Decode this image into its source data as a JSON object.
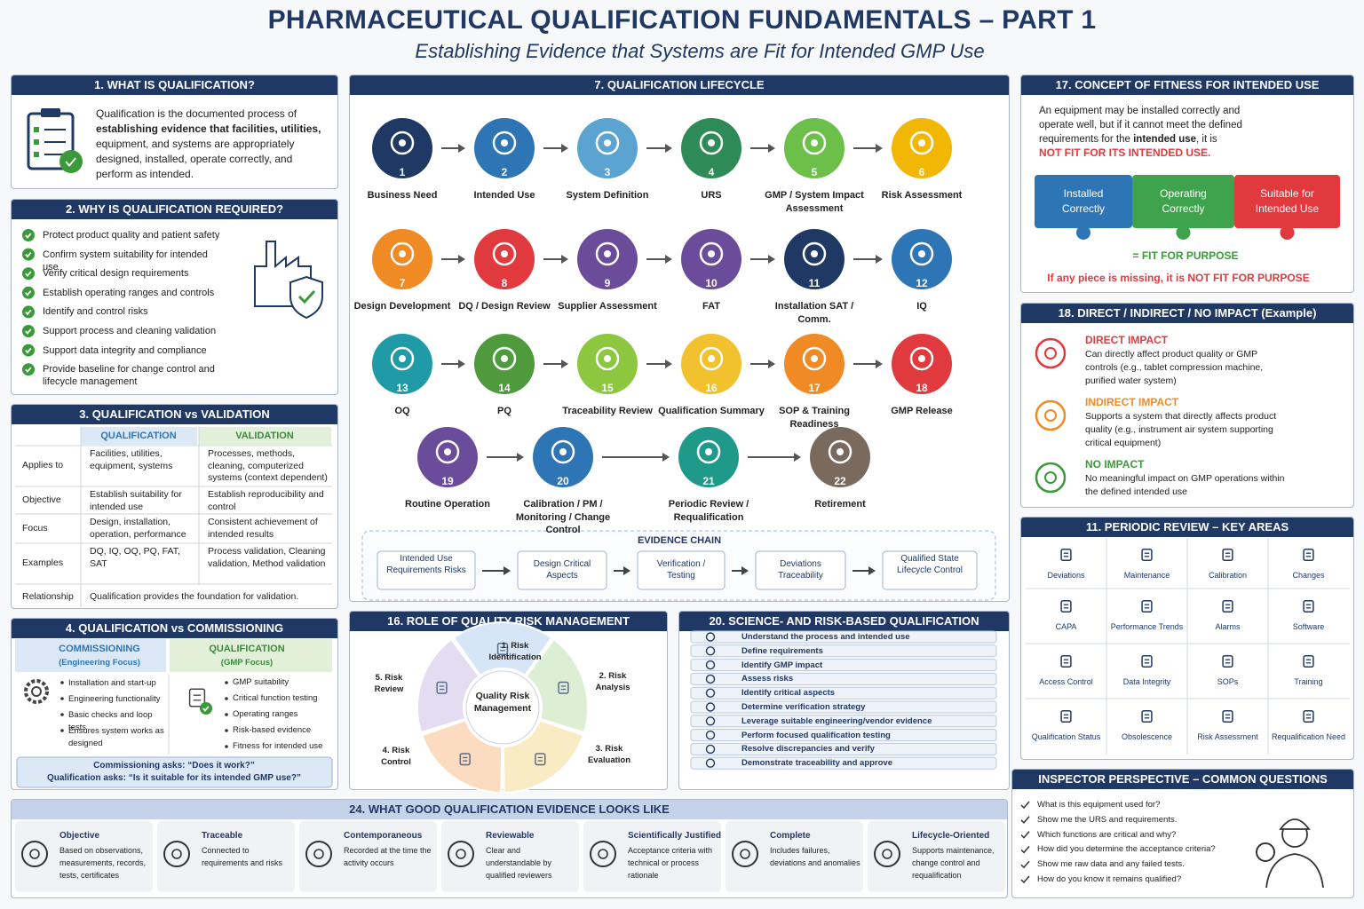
{
  "header": {
    "title": "PHARMACEUTICAL QUALIFICATION FUNDAMENTALS –  PART 1",
    "subtitle": "Establishing Evidence that Systems are Fit for Intended GMP Use"
  },
  "what_is": {
    "title": "1. WHAT IS QUALIFICATION?",
    "text": [
      "Qualification is the documented process of ",
      "establishing evidence that facilities, utilities,",
      " equipment, and systems are appropriately designed, installed, operate correctly, and perform as intended."
    ]
  },
  "why": {
    "title": "2. WHY IS QUALIFICATION REQUIRED?",
    "items": [
      "Protect product quality and patient safety",
      "Confirm system suitability for intended use",
      "Verify critical design requirements",
      "Establish operating ranges and controls",
      "Identify and control risks",
      "Support process and cleaning validation",
      "Support data integrity and compliance",
      "Provide baseline for change control and lifecycle management"
    ]
  },
  "vs_validation": {
    "title": "3. QUALIFICATION vs VALIDATION",
    "columns": [
      "QUALIFICATION",
      "VALIDATION"
    ],
    "rows": [
      {
        "label": "Applies to",
        "qualification": "Facilities, utilities, equipment, systems",
        "validation": "Processes, methods, cleaning, computerized systems (context dependent)"
      },
      {
        "label": "Objective",
        "qualification": "Establish suitability for intended use",
        "validation": "Establish reproducibility and control"
      },
      {
        "label": "Focus",
        "qualification": "Design, installation, operation, performance",
        "validation": "Consistent achievement of intended results"
      },
      {
        "label": "Examples",
        "qualification": "DQ, IQ, OQ, PQ, FAT, SAT",
        "validation": "Process validation, Cleaning validation, Method validation"
      }
    ],
    "relationship": {
      "label": "Relationship",
      "text": "Qualification provides the foundation for validation."
    }
  },
  "vs_commissioning": {
    "title": "4. QUALIFICATION vs COMMISSIONING",
    "commissioning": {
      "heading": "COMMISSIONING",
      "subheading": "(Engineering Focus)",
      "items": [
        "Installation and start-up",
        "Engineering functionality",
        "Basic checks and loop tests",
        "Ensures system works as designed"
      ]
    },
    "qualification": {
      "heading": "QUALIFICATION",
      "subheading": "(GMP Focus)",
      "items": [
        "GMP suitability",
        "Critical function testing",
        "Operating ranges",
        "Risk-based evidence",
        "Fitness for intended use"
      ]
    },
    "footer": [
      "Commissioning asks: “Does it work?”",
      "Qualification asks: “Is it suitable for its intended GMP use?”"
    ]
  },
  "lifecycle": {
    "title": "7. QUALIFICATION LIFECYCLE",
    "steps": [
      {
        "number": 1,
        "label": "Business Need",
        "color": "#1f3864"
      },
      {
        "number": 2,
        "label": "Intended Use",
        "color": "#2e75b6"
      },
      {
        "number": 3,
        "label": "System Definition",
        "color": "#5ba3d0"
      },
      {
        "number": 4,
        "label": "URS",
        "color": "#2e8b57"
      },
      {
        "number": 5,
        "label": "GMP / System Impact Assessment",
        "color": "#6cc04a"
      },
      {
        "number": 6,
        "label": "Risk Assessment",
        "color": "#f2b705"
      },
      {
        "number": 7,
        "label": "Design Development",
        "color": "#f08a24"
      },
      {
        "number": 8,
        "label": "DQ / Design Review",
        "color": "#e03a3e"
      },
      {
        "number": 9,
        "label": "Supplier Assessment",
        "color": "#6b4c9a"
      },
      {
        "number": 10,
        "label": "FAT",
        "color": "#6b4c9a"
      },
      {
        "number": 11,
        "label": "Installation SAT / Comm.",
        "color": "#1f3864"
      },
      {
        "number": 12,
        "label": "IQ",
        "color": "#2e75b6"
      },
      {
        "number": 13,
        "label": "OQ",
        "color": "#1f9aa6"
      },
      {
        "number": 14,
        "label": "PQ",
        "color": "#4e9a3c"
      },
      {
        "number": 15,
        "label": "Traceability Review",
        "color": "#8dc63f"
      },
      {
        "number": 16,
        "label": "Qualification Summary",
        "color": "#f2c12e"
      },
      {
        "number": 17,
        "label": "SOP & Training Readiness",
        "color": "#f08a24"
      },
      {
        "number": 18,
        "label": "GMP Release",
        "color": "#e03a3e"
      },
      {
        "number": 19,
        "label": "Routine Operation",
        "color": "#6b4c9a"
      },
      {
        "number": 20,
        "label": "Calibration / PM / Monitoring / Change Control",
        "color": "#2e75b6"
      },
      {
        "number": 21,
        "label": "Periodic Review / Requalification",
        "color": "#1f9a8a"
      },
      {
        "number": 22,
        "label": "Retirement",
        "color": "#7a6a5e"
      }
    ],
    "evidence_chain": {
      "title": "EVIDENCE CHAIN",
      "items": [
        "Intended Use Requirements Risks",
        "Design Critical Aspects",
        "Verification / Testing",
        "Deviations Traceability",
        "Qualified State Lifecycle Control"
      ]
    }
  },
  "risk_management": {
    "title": "16. ROLE OF QUALITY RISK MANAGEMENT",
    "center": "Quality Risk Management",
    "segments": [
      {
        "label": "1. Risk Identification",
        "color": "#d6e6f7"
      },
      {
        "label": "2. Risk Analysis",
        "color": "#dcefd5"
      },
      {
        "label": "3. Risk Evaluation",
        "color": "#f9ebc4"
      },
      {
        "label": "4. Risk Control",
        "color": "#fbdcc0"
      },
      {
        "label": "5. Risk Review",
        "color": "#e4dcf1"
      }
    ]
  },
  "science_based": {
    "title": "20. SCIENCE- AND RISK-BASED QUALIFICATION",
    "items": [
      "Understand the process and intended use",
      "Define requirements",
      "Identify GMP impact",
      "Assess risks",
      "Identify critical aspects",
      "Determine verification strategy",
      "Leverage suitable engineering/vendor evidence",
      "Perform focused qualification testing",
      "Resolve discrepancies and verify",
      "Demonstrate traceability and approve"
    ]
  },
  "fitness": {
    "title": "17. CONCEPT OF FITNESS FOR INTENDED USE",
    "text": [
      "An equipment may be installed correctly and operate well, but if it cannot meet the defined requirements for the ",
      "intended use",
      ", it is"
    ],
    "conclusion": "NOT FIT FOR ITS INTENDED USE.",
    "pieces": [
      {
        "label": "Installed Correctly",
        "color": "#2e75b6"
      },
      {
        "label": "Operating Correctly",
        "color": "#3fa34d"
      },
      {
        "label": "Suitable for Intended Use",
        "color": "#e0393e"
      }
    ],
    "result": "=  FIT FOR PURPOSE",
    "warning": "If any piece is missing, it is NOT FIT FOR PURPOSE"
  },
  "impact": {
    "title": "18. DIRECT / INDIRECT / NO IMPACT (Example)",
    "items": [
      {
        "heading": "DIRECT IMPACT",
        "text": "Can directly affect product quality or GMP controls (e.g., tablet compression machine, purified water system)",
        "color": "#e03a3e"
      },
      {
        "heading": "INDIRECT IMPACT",
        "text": "Supports a system that directly affects product quality (e.g., instrument air system supporting critical equipment)",
        "color": "#f08a24"
      },
      {
        "heading": "NO IMPACT",
        "text": "No meaningful impact on GMP operations within the defined intended use",
        "color": "#3a9a3a"
      }
    ]
  },
  "periodic_review": {
    "title": "11. PERIODIC REVIEW – KEY AREAS",
    "items": [
      "Deviations",
      "Maintenance",
      "Calibration",
      "Changes",
      "CAPA",
      "Performance Trends",
      "Alarms",
      "Software",
      "Access Control",
      "Data Integrity",
      "SOPs",
      "Training",
      "Qualification Status",
      "Obsolescence",
      "Risk Assessment",
      "Requalification Need"
    ]
  },
  "inspector": {
    "title": "INSPECTOR PERSPECTIVE – COMMON QUESTIONS",
    "questions": [
      "What is this equipment used for?",
      "Show me the URS and requirements.",
      "Which functions are critical and why?",
      "How did you determine the acceptance criteria?",
      "Show me raw data and any failed tests.",
      "How do you know it remains qualified?"
    ]
  },
  "good_evidence": {
    "title": "24. WHAT GOOD QUALIFICATION EVIDENCE LOOKS LIKE",
    "items": [
      {
        "heading": "Objective",
        "text": "Based on observations, measurements, records, tests, certificates"
      },
      {
        "heading": "Traceable",
        "text": "Connected to requirements and risks"
      },
      {
        "heading": "Contemporaneous",
        "text": "Recorded at the time the activity occurs"
      },
      {
        "heading": "Reviewable",
        "text": "Clear and understandable by qualified reviewers"
      },
      {
        "heading": "Scientifically Justified",
        "text": "Acceptance criteria with technical or process rationale"
      },
      {
        "heading": "Complete",
        "text": "Includes failures, deviations and anomalies"
      },
      {
        "heading": "Lifecycle-Oriented",
        "text": "Supports maintenance, change control and requalification"
      }
    ]
  }
}
